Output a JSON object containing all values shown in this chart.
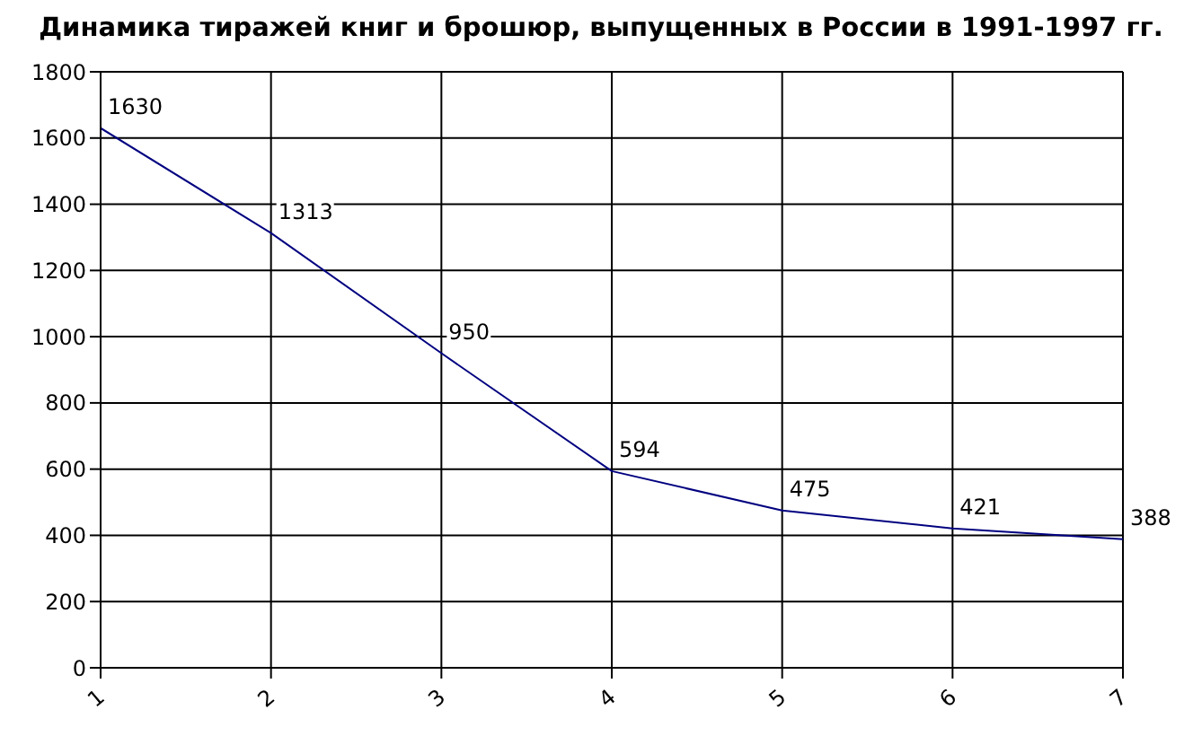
{
  "chart_data": {
    "type": "line",
    "title": "Динамика тиражей книг и брошюр, выпущенных в России в 1991-1997 гг.",
    "x": [
      1,
      2,
      3,
      4,
      5,
      6,
      7
    ],
    "series": [
      {
        "color": "#000080",
        "values": [
          1630,
          1313,
          950,
          594,
          475,
          421,
          388
        ]
      }
    ],
    "xlim": [
      1,
      7
    ],
    "xticks": [
      1,
      2,
      3,
      4,
      5,
      6,
      7
    ],
    "ylim": [
      0,
      1800
    ],
    "yticks": [
      0,
      200,
      400,
      600,
      800,
      1000,
      1200,
      1400,
      1600,
      1800
    ],
    "grid": true,
    "marker": "none",
    "line_style": "solid",
    "data_labels": true
  }
}
